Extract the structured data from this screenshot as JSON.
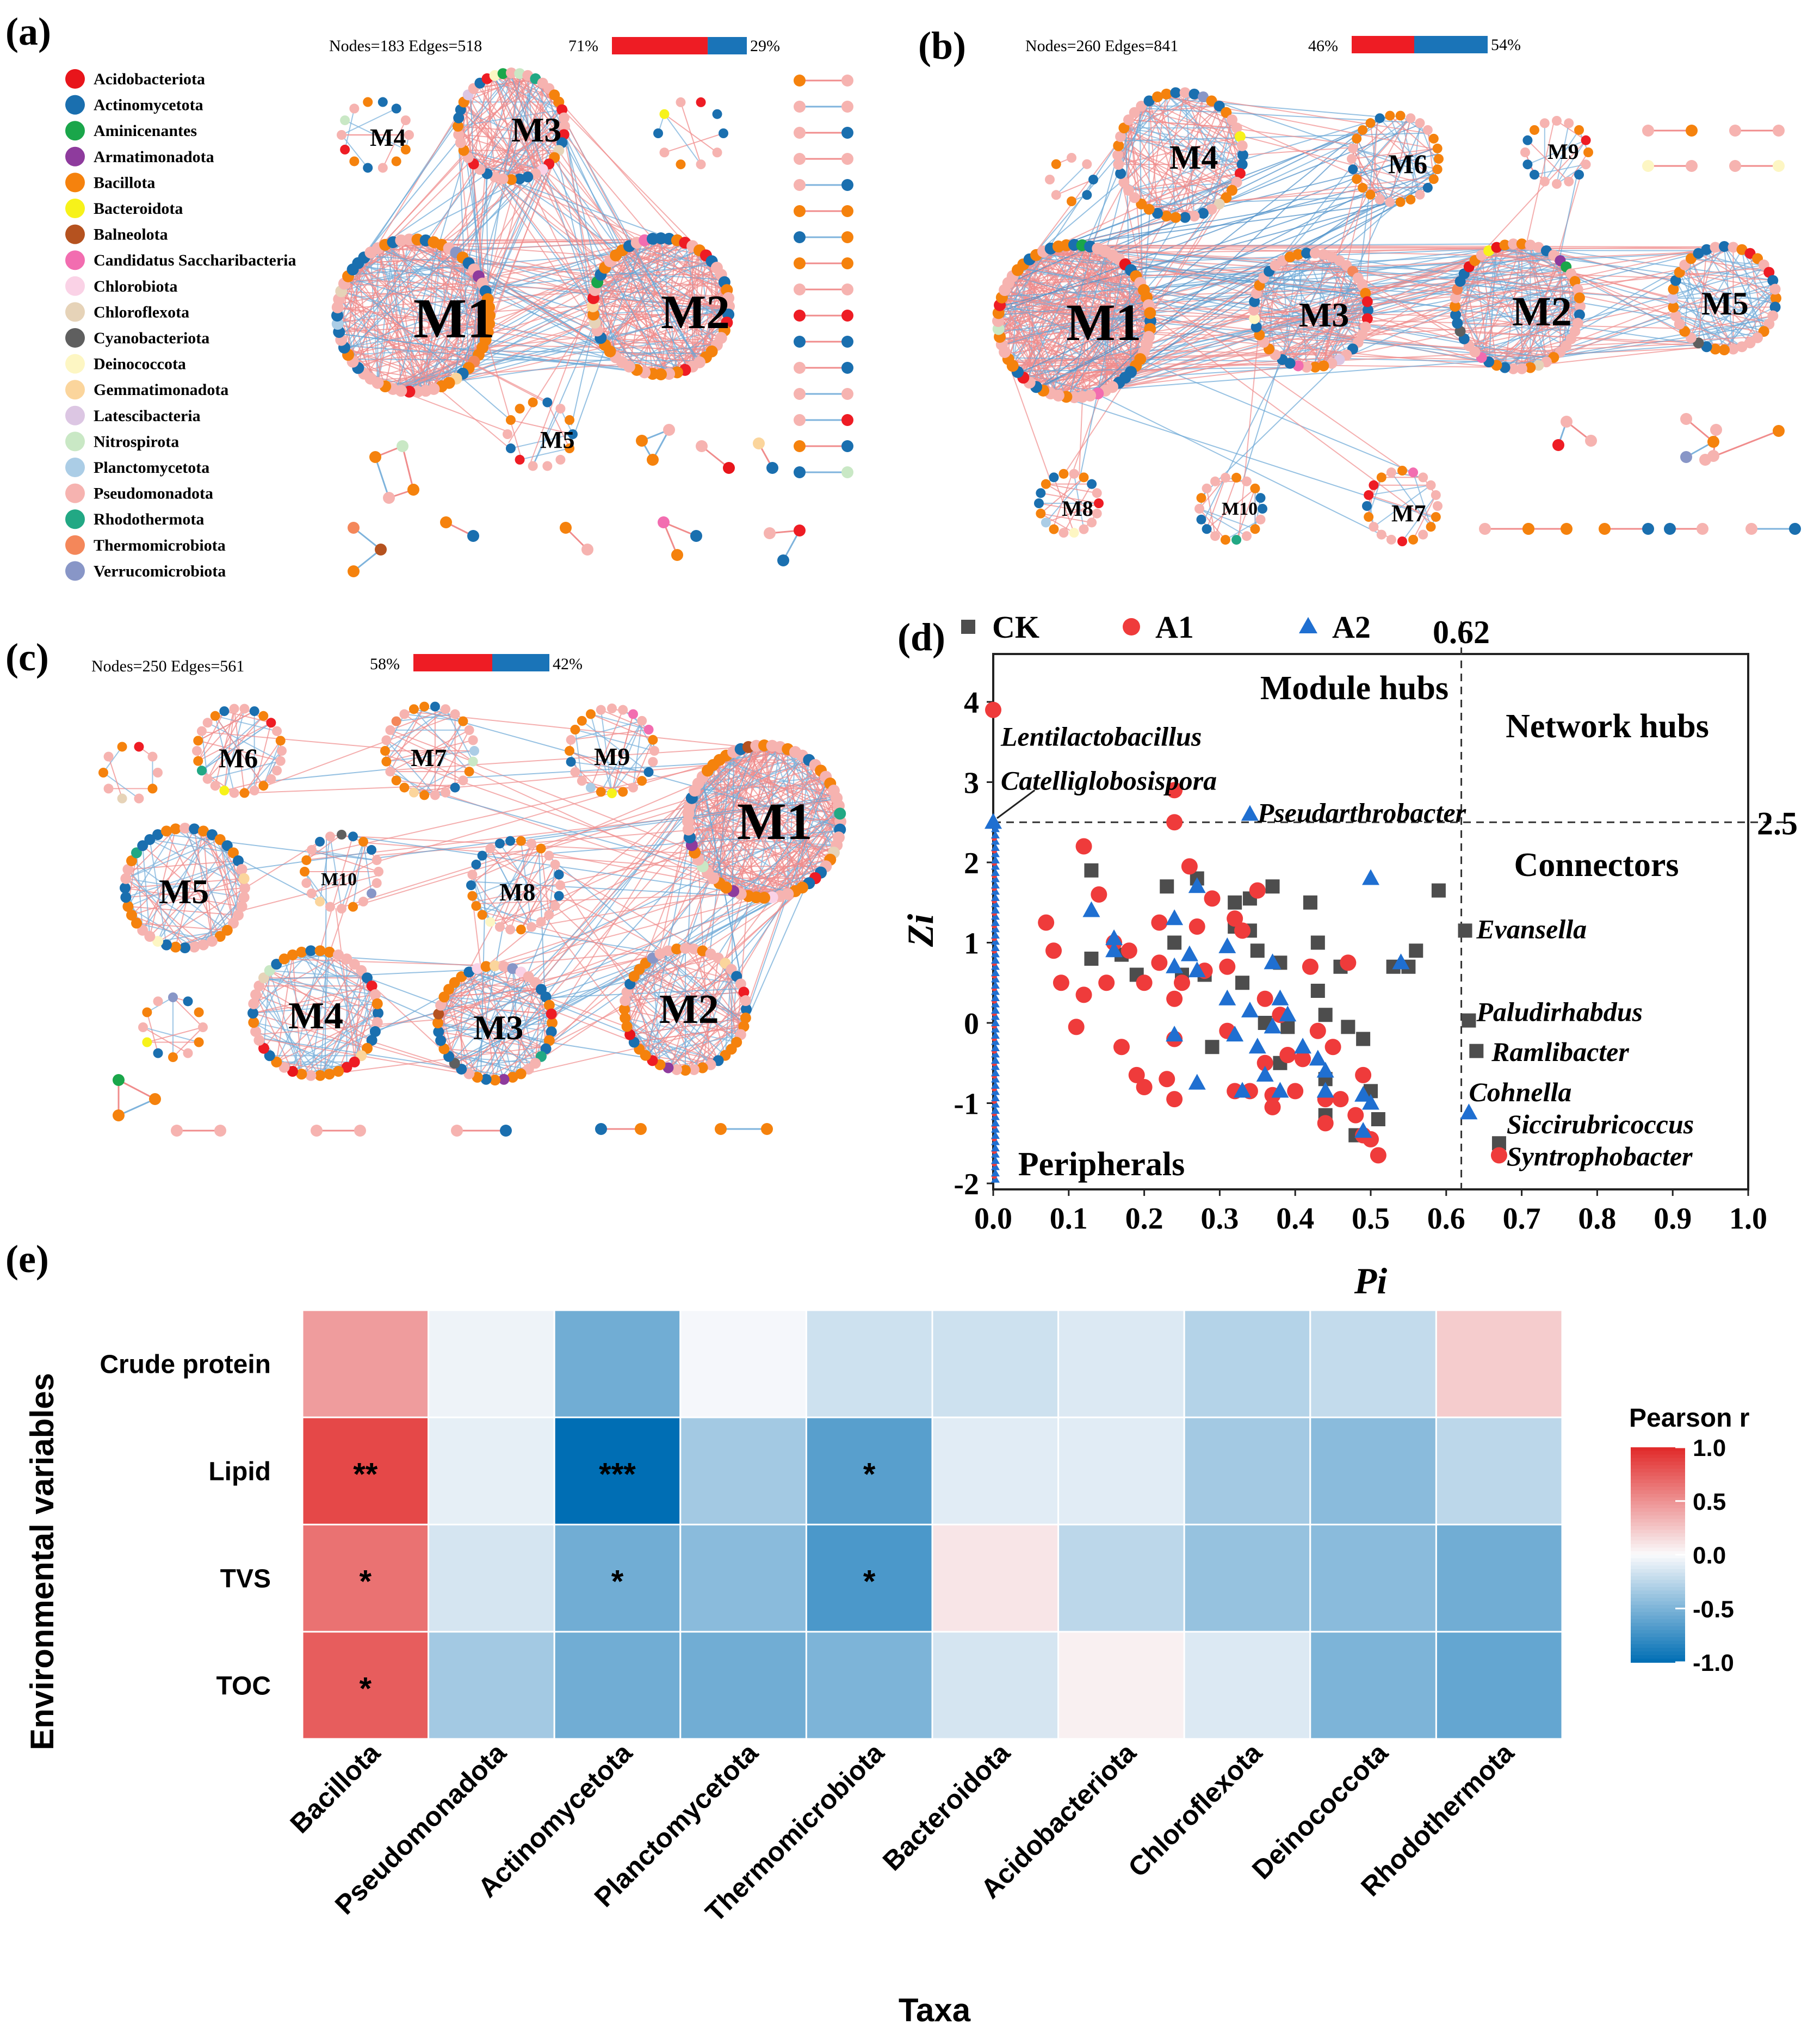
{
  "panels": {
    "a": {
      "label": "(a)",
      "stats": "Nodes=183    Edges=518",
      "pos_pct": "71%",
      "neg_pct": "29%",
      "pos": 71,
      "neg": 29,
      "modules": [
        "M1",
        "M2",
        "M3",
        "M4",
        "M5"
      ]
    },
    "b": {
      "label": "(b)",
      "stats": "Nodes=260    Edges=841",
      "pos_pct": "46%",
      "neg_pct": "54%",
      "pos": 46,
      "neg": 54,
      "modules": [
        "M1",
        "M2",
        "M3",
        "M4",
        "M5",
        "M6",
        "M7",
        "M8",
        "M9",
        "M10"
      ]
    },
    "c": {
      "label": "(c)",
      "stats": "Nodes=250    Edges=561",
      "pos_pct": "58%",
      "neg_pct": "42%",
      "pos": 58,
      "neg": 42,
      "modules": [
        "M1",
        "M2",
        "M3",
        "M4",
        "M5",
        "M6",
        "M7",
        "M8",
        "M9",
        "M10"
      ]
    },
    "d": {
      "label": "(d)"
    },
    "e": {
      "label": "(e)"
    }
  },
  "phylum_legend": [
    {
      "name": "Acidobacteriota",
      "color": "#e8151b"
    },
    {
      "name": "Actinomycetota",
      "color": "#1a6faf"
    },
    {
      "name": "Aminicenantes",
      "color": "#1aa64a"
    },
    {
      "name": "Armatimonadota",
      "color": "#8e3b9d"
    },
    {
      "name": "Bacillota",
      "color": "#f5820d"
    },
    {
      "name": "Bacteroidota",
      "color": "#f7f21a"
    },
    {
      "name": "Balneolota",
      "color": "#b5521f"
    },
    {
      "name": "Candidatus Saccharibacteria",
      "color": "#f26db0"
    },
    {
      "name": "Chlorobiota",
      "color": "#fad2e6"
    },
    {
      "name": "Chloroflexota",
      "color": "#e6d3b8"
    },
    {
      "name": "Cyanobacteriota",
      "color": "#5f5f5f"
    },
    {
      "name": "Deinococcota",
      "color": "#fdf6c3"
    },
    {
      "name": "Gemmatimonadota",
      "color": "#fbd59c"
    },
    {
      "name": "Latescibacteria",
      "color": "#dcc6e3"
    },
    {
      "name": "Nitrospirota",
      "color": "#c9e8c5"
    },
    {
      "name": "Planctomycetota",
      "color": "#abcde6"
    },
    {
      "name": "Pseudomonadota",
      "color": "#f6b3b0"
    },
    {
      "name": "Rhodothermota",
      "color": "#22a884"
    },
    {
      "name": "Thermomicrobiota",
      "color": "#f4875a"
    },
    {
      "name": "Verrucomicrobiota",
      "color": "#8896c7"
    }
  ],
  "chart_data": [
    {
      "type": "scatter",
      "title": "",
      "xlabel": "Pi",
      "ylabel": "Zi",
      "xlim": [
        0,
        1.0
      ],
      "ylim": [
        -2,
        4.5
      ],
      "xticks": [
        "0.0",
        "0.1",
        "0.2",
        "0.3",
        "0.4",
        "0.5",
        "0.6",
        "0.7",
        "0.8",
        "0.9",
        "1.0"
      ],
      "yticks": [
        "-2",
        "-1",
        "0",
        "1",
        "2",
        "3",
        "4"
      ],
      "threshold_x": 0.62,
      "threshold_x_label": "0.62",
      "threshold_y": 2.5,
      "threshold_y_label": "2.5",
      "regions": {
        "module_hubs": "Module hubs",
        "network_hubs": "Network hubs",
        "connectors": "Connectors",
        "peripherals": "Peripherals"
      },
      "legend": [
        {
          "name": "CK",
          "marker": "square",
          "color": "#4d4d4d"
        },
        {
          "name": "A1",
          "marker": "circle",
          "color": "#ef3b3b"
        },
        {
          "name": "A2",
          "marker": "triangle",
          "color": "#1f6fd1"
        }
      ],
      "annotations": [
        {
          "text": "Lentilactobacillus",
          "x": 0.01,
          "y": 3.55
        },
        {
          "text": "Catelliglobosispora",
          "x": 0.01,
          "y": 3.0
        },
        {
          "text": "Pseudarthrobacter",
          "x": 0.35,
          "y": 2.6
        },
        {
          "text": "Evansella",
          "x": 0.64,
          "y": 1.15
        },
        {
          "text": "Paludirhabdus",
          "x": 0.64,
          "y": 0.12
        },
        {
          "text": "Ramlibacter",
          "x": 0.66,
          "y": -0.38
        },
        {
          "text": "Cohnella",
          "x": 0.63,
          "y": -0.88
        },
        {
          "text": "Siccirubricoccus",
          "x": 0.68,
          "y": -1.28
        },
        {
          "text": "Syntrophobacter",
          "x": 0.68,
          "y": -1.68
        }
      ],
      "series": [
        {
          "name": "CK",
          "points": [
            [
              0.13,
              1.9
            ],
            [
              0.13,
              0.8
            ],
            [
              0.17,
              0.85
            ],
            [
              0.19,
              0.6
            ],
            [
              0.23,
              1.7
            ],
            [
              0.24,
              1.0
            ],
            [
              0.25,
              0.6
            ],
            [
              0.27,
              1.8
            ],
            [
              0.28,
              0.6
            ],
            [
              0.29,
              -0.3
            ],
            [
              0.32,
              1.5
            ],
            [
              0.32,
              1.2
            ],
            [
              0.33,
              0.5
            ],
            [
              0.34,
              1.55
            ],
            [
              0.34,
              1.15
            ],
            [
              0.35,
              0.9
            ],
            [
              0.36,
              0.0
            ],
            [
              0.37,
              1.7
            ],
            [
              0.38,
              0.75
            ],
            [
              0.38,
              -0.5
            ],
            [
              0.39,
              -0.05
            ],
            [
              0.42,
              1.5
            ],
            [
              0.43,
              1.0
            ],
            [
              0.43,
              0.4
            ],
            [
              0.44,
              0.1
            ],
            [
              0.44,
              -0.7
            ],
            [
              0.44,
              -1.15
            ],
            [
              0.46,
              0.7
            ],
            [
              0.47,
              -0.05
            ],
            [
              0.48,
              -1.4
            ],
            [
              0.49,
              -0.2
            ],
            [
              0.5,
              -0.85
            ],
            [
              0.51,
              -1.2
            ],
            [
              0.53,
              0.7
            ],
            [
              0.55,
              0.7
            ],
            [
              0.56,
              0.9
            ],
            [
              0.59,
              1.65
            ],
            [
              0.625,
              1.15
            ],
            [
              0.63,
              0.03
            ],
            [
              0.64,
              -0.35
            ],
            [
              0.67,
              -1.5
            ]
          ]
        },
        {
          "name": "A1",
          "points": [
            [
              0.0,
              3.9
            ],
            [
              0.07,
              1.25
            ],
            [
              0.08,
              0.9
            ],
            [
              0.09,
              0.5
            ],
            [
              0.11,
              -0.05
            ],
            [
              0.12,
              0.35
            ],
            [
              0.12,
              2.2
            ],
            [
              0.14,
              1.6
            ],
            [
              0.15,
              0.5
            ],
            [
              0.16,
              1.0
            ],
            [
              0.17,
              -0.3
            ],
            [
              0.18,
              0.9
            ],
            [
              0.19,
              -0.65
            ],
            [
              0.2,
              -0.8
            ],
            [
              0.2,
              0.5
            ],
            [
              0.22,
              1.25
            ],
            [
              0.22,
              0.75
            ],
            [
              0.23,
              -0.7
            ],
            [
              0.24,
              0.3
            ],
            [
              0.24,
              2.9
            ],
            [
              0.24,
              2.5
            ],
            [
              0.24,
              -0.2
            ],
            [
              0.24,
              -0.95
            ],
            [
              0.25,
              0.5
            ],
            [
              0.26,
              1.95
            ],
            [
              0.27,
              1.2
            ],
            [
              0.28,
              0.65
            ],
            [
              0.29,
              1.55
            ],
            [
              0.31,
              -0.1
            ],
            [
              0.31,
              0.7
            ],
            [
              0.32,
              1.3
            ],
            [
              0.32,
              -0.85
            ],
            [
              0.33,
              1.15
            ],
            [
              0.34,
              -0.85
            ],
            [
              0.35,
              1.65
            ],
            [
              0.36,
              0.3
            ],
            [
              0.36,
              -0.5
            ],
            [
              0.37,
              -1.05
            ],
            [
              0.37,
              -0.9
            ],
            [
              0.38,
              0.1
            ],
            [
              0.39,
              -0.4
            ],
            [
              0.4,
              -0.85
            ],
            [
              0.41,
              -0.45
            ],
            [
              0.42,
              0.7
            ],
            [
              0.43,
              -0.1
            ],
            [
              0.44,
              -0.95
            ],
            [
              0.44,
              -1.25
            ],
            [
              0.45,
              -0.3
            ],
            [
              0.46,
              -0.95
            ],
            [
              0.47,
              0.75
            ],
            [
              0.48,
              -1.15
            ],
            [
              0.49,
              -0.65
            ],
            [
              0.49,
              -1.4
            ],
            [
              0.5,
              -1.45
            ],
            [
              0.51,
              -1.65
            ],
            [
              0.67,
              -1.65
            ]
          ]
        },
        {
          "name": "A2",
          "points": [
            [
              0.0,
              2.5
            ],
            [
              0.13,
              1.4
            ],
            [
              0.16,
              1.05
            ],
            [
              0.16,
              0.9
            ],
            [
              0.24,
              1.3
            ],
            [
              0.24,
              0.7
            ],
            [
              0.24,
              -0.15
            ],
            [
              0.26,
              0.85
            ],
            [
              0.27,
              1.7
            ],
            [
              0.27,
              0.65
            ],
            [
              0.27,
              -0.75
            ],
            [
              0.31,
              0.95
            ],
            [
              0.31,
              0.3
            ],
            [
              0.32,
              -0.15
            ],
            [
              0.33,
              -0.85
            ],
            [
              0.34,
              2.6
            ],
            [
              0.34,
              0.15
            ],
            [
              0.35,
              -0.3
            ],
            [
              0.36,
              -0.65
            ],
            [
              0.37,
              -0.05
            ],
            [
              0.37,
              0.75
            ],
            [
              0.38,
              0.3
            ],
            [
              0.38,
              -0.85
            ],
            [
              0.39,
              0.1
            ],
            [
              0.41,
              -0.3
            ],
            [
              0.43,
              -0.45
            ],
            [
              0.44,
              -0.6
            ],
            [
              0.44,
              -0.85
            ],
            [
              0.49,
              -0.9
            ],
            [
              0.49,
              -1.35
            ],
            [
              0.5,
              -1.0
            ],
            [
              0.5,
              1.8
            ],
            [
              0.54,
              0.75
            ],
            [
              0.63,
              -1.12
            ]
          ]
        }
      ]
    },
    {
      "type": "heatmap",
      "title": "",
      "xlabel": "Taxa",
      "ylabel": "Environmental variables",
      "rows": [
        "Crude protein",
        "Lipid",
        "TVS",
        "TOC"
      ],
      "columns": [
        "Bacillota",
        "Pseudomonadota",
        "Actinomycetota",
        "Planctomycetota",
        "Thermomicrobiota",
        "Bacteroidota",
        "Acidobacteriota",
        "Chloroflexota",
        "Deinococcota",
        "Rhodothermota"
      ],
      "values": [
        [
          0.45,
          -0.05,
          -0.55,
          -0.02,
          -0.18,
          -0.18,
          -0.12,
          -0.28,
          -0.22,
          0.22
        ],
        [
          0.85,
          -0.08,
          -1.0,
          -0.35,
          -0.65,
          -0.1,
          -0.1,
          -0.35,
          -0.45,
          -0.25
        ],
        [
          0.65,
          -0.15,
          -0.55,
          -0.45,
          -0.7,
          0.1,
          -0.25,
          -0.4,
          -0.45,
          -0.55
        ],
        [
          0.75,
          -0.35,
          -0.55,
          -0.55,
          -0.5,
          -0.15,
          0.05,
          -0.12,
          -0.5,
          -0.6
        ]
      ],
      "significance": [
        [
          "",
          "",
          "",
          "",
          "",
          "",
          "",
          "",
          "",
          ""
        ],
        [
          "**",
          "",
          "***",
          "",
          "*",
          "",
          "",
          "",
          "",
          ""
        ],
        [
          "*",
          "",
          "*",
          "",
          "*",
          "",
          "",
          "",
          "",
          ""
        ],
        [
          "*",
          "",
          "",
          "",
          "",
          "",
          "",
          "",
          "",
          ""
        ]
      ],
      "colorbar": {
        "title": "Pearson r",
        "range": [
          -1.0,
          1.0
        ],
        "ticks": [
          "1.0",
          "0.5",
          "0.0",
          "-0.5",
          "-1.0"
        ]
      }
    }
  ]
}
